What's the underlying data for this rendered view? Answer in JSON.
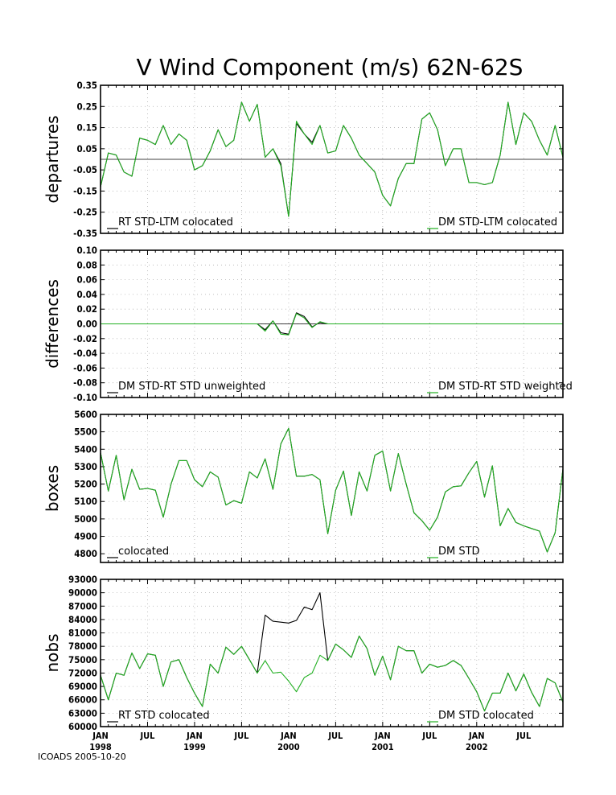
{
  "title": "V Wind Component (m/s) 62N-62S",
  "footer": "ICOADS 2005-10-20",
  "colors": {
    "series_a": "#000000",
    "series_b": "#22b022"
  },
  "chart_data": [
    {
      "type": "line",
      "ylabel": "departures",
      "ylim": [
        -0.35,
        0.35
      ],
      "yticks": [
        "0.35",
        "0.25",
        "0.15",
        "0.05",
        "-0.05",
        "-0.15",
        "-0.25",
        "-0.35"
      ],
      "reference_line": 0,
      "series": [
        {
          "name": "RT STD-LTM colocated",
          "legend_pos": "bottom-left",
          "values": [
            -0.13,
            0.03,
            0.02,
            -0.06,
            -0.08,
            0.1,
            0.09,
            0.07,
            0.16,
            0.07,
            0.12,
            0.09,
            -0.05,
            -0.03,
            0.04,
            0.14,
            0.06,
            0.09,
            0.27,
            0.18,
            0.26,
            0.01,
            0.05,
            -0.02,
            -0.27,
            0.17,
            0.12,
            0.08,
            0.16,
            0.03,
            0.04,
            0.16,
            0.1,
            0.02,
            -0.02,
            -0.06,
            -0.17,
            -0.22,
            -0.09,
            -0.02,
            -0.02,
            0.19,
            0.22,
            0.14,
            -0.03,
            0.05,
            0.05,
            -0.11,
            -0.11,
            -0.12,
            -0.11,
            0.02,
            0.27,
            0.07,
            0.22,
            0.18,
            0.09,
            0.02,
            0.16,
            0.01
          ]
        },
        {
          "name": "DM STD-LTM colocated",
          "legend_pos": "bottom-right",
          "values": [
            -0.13,
            0.03,
            0.02,
            -0.06,
            -0.08,
            0.1,
            0.09,
            0.07,
            0.16,
            0.07,
            0.12,
            0.09,
            -0.05,
            -0.03,
            0.04,
            0.14,
            0.06,
            0.09,
            0.27,
            0.18,
            0.26,
            0.01,
            0.05,
            -0.03,
            -0.27,
            0.18,
            0.12,
            0.07,
            0.16,
            0.03,
            0.04,
            0.16,
            0.1,
            0.02,
            -0.02,
            -0.06,
            -0.17,
            -0.22,
            -0.09,
            -0.02,
            -0.02,
            0.19,
            0.22,
            0.14,
            -0.03,
            0.05,
            0.05,
            -0.11,
            -0.11,
            -0.12,
            -0.11,
            0.02,
            0.27,
            0.07,
            0.22,
            0.18,
            0.09,
            0.02,
            0.16,
            0.01
          ]
        }
      ]
    },
    {
      "type": "line",
      "ylabel": "differences",
      "ylim": [
        -0.1,
        0.1
      ],
      "yticks": [
        "0.10",
        "0.08",
        "0.06",
        "0.04",
        "0.02",
        "0.00",
        "-0.02",
        "-0.04",
        "-0.06",
        "-0.08",
        "-0.10"
      ],
      "reference_line": 0,
      "series": [
        {
          "name": "DM STD-RT STD unweighted",
          "legend_pos": "bottom-left",
          "values": [
            0,
            0,
            0,
            0,
            0,
            0,
            0,
            0,
            0,
            0,
            0,
            0,
            0,
            0,
            0,
            0,
            0,
            0,
            0,
            0,
            0,
            -0.008,
            0.004,
            -0.012,
            -0.014,
            0.015,
            0.01,
            -0.004,
            0.002,
            0,
            0,
            0,
            0,
            0,
            0,
            0,
            0,
            0,
            0,
            0,
            0,
            0,
            0,
            0,
            0,
            0,
            0,
            0,
            0,
            0,
            0,
            0,
            0,
            0,
            0,
            0,
            0,
            0,
            0,
            0
          ]
        },
        {
          "name": "DM STD-RT STD weighted",
          "legend_pos": "bottom-right",
          "values": [
            0,
            0,
            0,
            0,
            0,
            0,
            0,
            0,
            0,
            0,
            0,
            0,
            0,
            0,
            0,
            0,
            0,
            0,
            0,
            0,
            0,
            -0.01,
            0.004,
            -0.014,
            -0.015,
            0.014,
            0.008,
            -0.005,
            0.003,
            0,
            0,
            0,
            0,
            0,
            0,
            0,
            0,
            0,
            0,
            0,
            0,
            0,
            0,
            0,
            0,
            0,
            0,
            0,
            0,
            0,
            0,
            0,
            0,
            0,
            0,
            0,
            0,
            0,
            0,
            0
          ]
        }
      ]
    },
    {
      "type": "line",
      "ylabel": "boxes",
      "ylim": [
        4750,
        5600
      ],
      "yticks": [
        "5600",
        "5500",
        "5400",
        "5300",
        "5200",
        "5100",
        "5000",
        "4900",
        "4800"
      ],
      "tick_values": [
        5600,
        5500,
        5400,
        5300,
        5200,
        5100,
        5000,
        4900,
        4800
      ],
      "series": [
        {
          "name": "colocated",
          "legend_pos": "bottom-left",
          "values": [
            5380,
            5160,
            5365,
            5110,
            5285,
            5170,
            5175,
            5165,
            5010,
            5200,
            5335,
            5335,
            5225,
            5185,
            5270,
            5240,
            5080,
            5105,
            5090,
            5270,
            5235,
            5345,
            5170,
            5430,
            5520,
            5245,
            5245,
            5255,
            5225,
            4915,
            5165,
            5275,
            5020,
            5270,
            5160,
            5365,
            5390,
            5160,
            5375,
            5200,
            5035,
            4990,
            4935,
            5010,
            5155,
            5185,
            5190,
            5265,
            5330,
            5125,
            5305,
            4960,
            5060,
            4980,
            4960,
            4945,
            4930,
            4810,
            4920,
            5285
          ]
        },
        {
          "name": "DM STD",
          "legend_pos": "bottom-right",
          "values": [
            5380,
            5160,
            5365,
            5110,
            5285,
            5170,
            5175,
            5165,
            5010,
            5200,
            5335,
            5335,
            5225,
            5185,
            5270,
            5240,
            5080,
            5105,
            5090,
            5270,
            5235,
            5345,
            5170,
            5430,
            5520,
            5245,
            5245,
            5255,
            5225,
            4915,
            5165,
            5275,
            5020,
            5270,
            5160,
            5365,
            5390,
            5160,
            5375,
            5200,
            5035,
            4990,
            4935,
            5010,
            5155,
            5185,
            5190,
            5265,
            5330,
            5125,
            5305,
            4960,
            5060,
            4980,
            4960,
            4945,
            4930,
            4810,
            4920,
            5285
          ]
        }
      ]
    },
    {
      "type": "line",
      "ylabel": "nobs",
      "ylim": [
        60000,
        93000
      ],
      "yticks": [
        "93000",
        "90000",
        "87000",
        "84000",
        "81000",
        "78000",
        "75000",
        "72000",
        "69000",
        "66000",
        "63000",
        "60000"
      ],
      "tick_values": [
        93000,
        90000,
        87000,
        84000,
        81000,
        78000,
        75000,
        72000,
        69000,
        66000,
        63000,
        60000
      ],
      "series": [
        {
          "name": "RT STD colocated",
          "legend_pos": "bottom-left",
          "values": [
            71500,
            66000,
            72000,
            71500,
            76500,
            73000,
            76300,
            76000,
            69000,
            74500,
            75000,
            71000,
            67500,
            64500,
            74000,
            72000,
            77800,
            76200,
            78000,
            75000,
            72000,
            85000,
            83600,
            83400,
            83200,
            83800,
            86800,
            86200,
            90000,
            74800,
            78500,
            77200,
            75500,
            80300,
            77500,
            71500,
            75800,
            70500,
            78000,
            77000,
            77000,
            72000,
            74000,
            73300,
            73700,
            74800,
            73700,
            70800,
            67800,
            63500,
            67500,
            67500,
            72000,
            68000,
            71800,
            67700,
            64500,
            70800,
            69800,
            65500
          ]
        },
        {
          "name": "DM STD colocated",
          "legend_pos": "bottom-right",
          "values": [
            71500,
            66000,
            72000,
            71500,
            76500,
            73000,
            76300,
            76000,
            69000,
            74500,
            75000,
            71000,
            67500,
            64500,
            74000,
            72000,
            77800,
            76200,
            78000,
            75000,
            72000,
            74800,
            72000,
            72200,
            70200,
            67800,
            71000,
            72000,
            76000,
            74800,
            78500,
            77200,
            75500,
            80300,
            77500,
            71500,
            75800,
            70500,
            78000,
            77000,
            77000,
            72000,
            74000,
            73300,
            73700,
            74800,
            73700,
            70800,
            67800,
            63500,
            67500,
            67500,
            72000,
            68000,
            71800,
            67700,
            64500,
            70800,
            69800,
            65500
          ]
        }
      ]
    }
  ],
  "x_axis": {
    "n_months": 60,
    "labels": [
      {
        "index": 0,
        "month": "JAN",
        "year": "1998"
      },
      {
        "index": 6,
        "month": "JUL",
        "year": ""
      },
      {
        "index": 12,
        "month": "JAN",
        "year": "1999"
      },
      {
        "index": 18,
        "month": "JUL",
        "year": ""
      },
      {
        "index": 24,
        "month": "JAN",
        "year": "2000"
      },
      {
        "index": 30,
        "month": "JUL",
        "year": ""
      },
      {
        "index": 36,
        "month": "JAN",
        "year": "2001"
      },
      {
        "index": 42,
        "month": "JUL",
        "year": ""
      },
      {
        "index": 48,
        "month": "JAN",
        "year": "2002"
      },
      {
        "index": 54,
        "month": "JUL",
        "year": ""
      }
    ]
  }
}
